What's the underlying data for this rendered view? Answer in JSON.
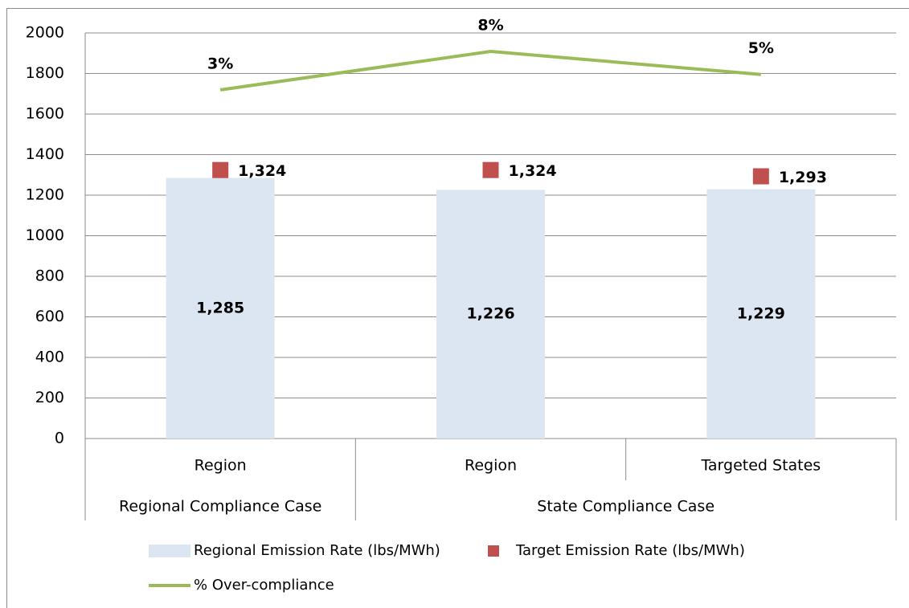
{
  "chart_data": {
    "type": "bar",
    "categories": [
      "Region",
      "Region",
      "Targeted States"
    ],
    "groups": [
      {
        "label": "Regional Compliance Case",
        "size": 1
      },
      {
        "label": "State Compliance Case",
        "size": 2
      }
    ],
    "series": [
      {
        "name": "Regional Emission Rate (lbs/MWh)",
        "type": "bar",
        "color": "#dce6f2",
        "values": [
          1285,
          1226,
          1229
        ],
        "value_labels": [
          "1,285",
          "1,226",
          "1,229"
        ]
      },
      {
        "name": "Target Emission Rate (lbs/MWh)",
        "type": "marker",
        "color": "#c0504d",
        "values": [
          1324,
          1324,
          1293
        ],
        "value_labels": [
          "1,324",
          "1,324",
          "1,293"
        ]
      },
      {
        "name": "% Over-compliance",
        "type": "line",
        "axis": "y2",
        "color": "#9bbb59",
        "values": [
          3,
          8,
          5
        ],
        "value_labels": [
          "3%",
          "8%",
          "5%"
        ]
      }
    ],
    "ylim": [
      0,
      2000
    ],
    "yticks": [
      0,
      200,
      400,
      600,
      800,
      1000,
      1200,
      1400,
      1600,
      1800,
      2000
    ],
    "y2lim": [
      -42.3,
      10.4
    ],
    "grid": true,
    "legend": "bottom"
  }
}
